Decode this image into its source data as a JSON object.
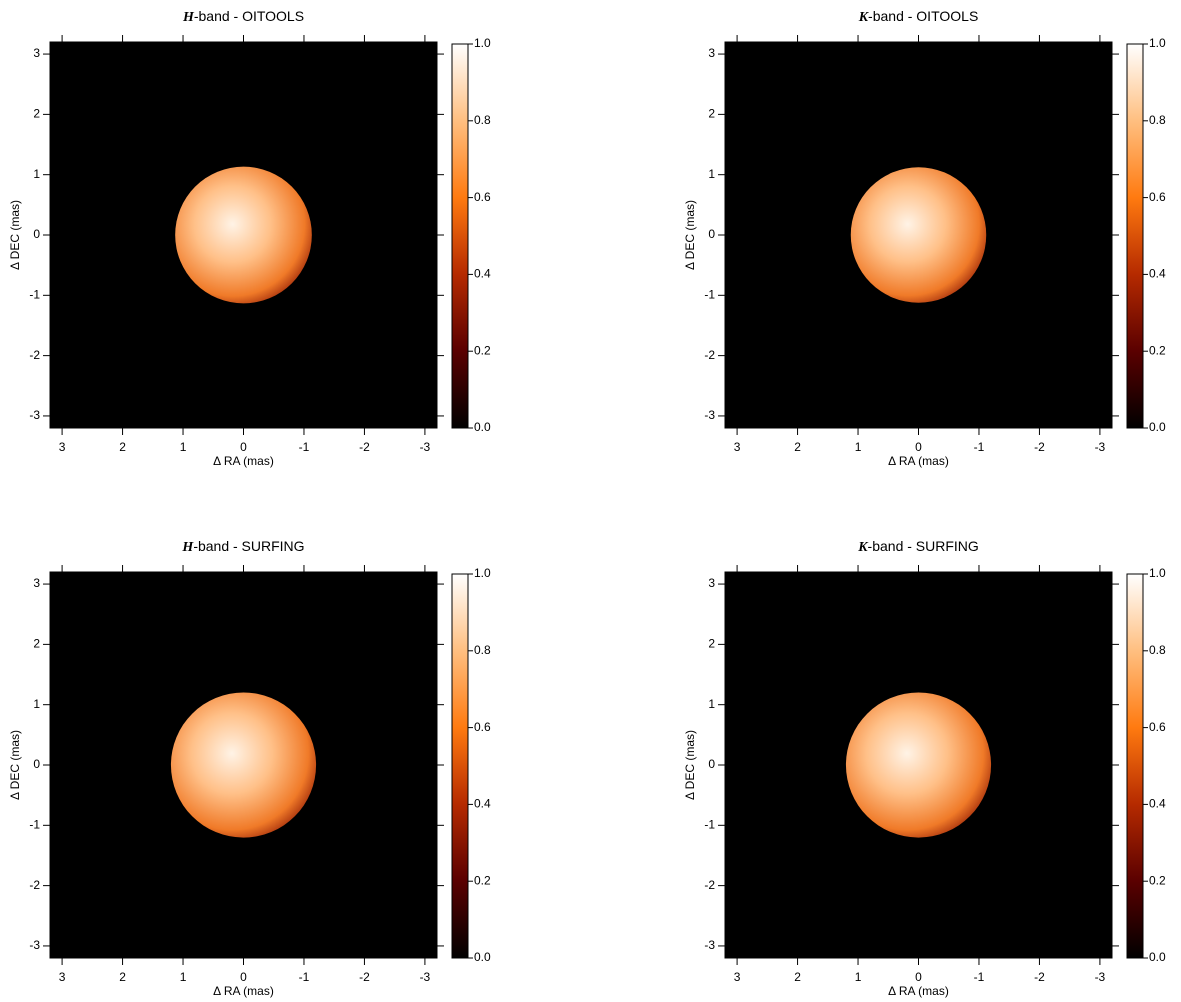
{
  "chart_data": [
    {
      "type": "image",
      "title": "H-band - OITOOLS",
      "xlabel": "Δ RA (mas)",
      "ylabel": "Δ DEC (mas)",
      "xlim": [
        3.2,
        -3.2
      ],
      "ylim": [
        -3.2,
        3.2
      ],
      "xticks": [
        3,
        2,
        1,
        0,
        -1,
        -2,
        -3
      ],
      "yticks": [
        -3,
        -2,
        -1,
        0,
        1,
        2,
        3
      ],
      "disk": {
        "center": [
          0,
          0
        ],
        "radius": 1.13
      },
      "colorbar": {
        "lim": [
          0,
          1
        ],
        "ticks": [
          {
            "value": 0,
            "label": "0.0"
          },
          0.2,
          0.4,
          0.6,
          0.8,
          {
            "value": 1,
            "label": "1.0"
          }
        ],
        "colors": [
          "#000000",
          "#5a0000",
          "#b52a00",
          "#ff7a10",
          "#ffbf80",
          "#ffffff"
        ]
      }
    },
    {
      "type": "image",
      "title": "K-band - OITOOLS",
      "xlabel": "Δ RA (mas)",
      "ylabel": "Δ DEC (mas)",
      "xlim": [
        3.2,
        -3.2
      ],
      "ylim": [
        -3.2,
        3.2
      ],
      "xticks": [
        3,
        2,
        1,
        0,
        -1,
        -2,
        -3
      ],
      "yticks": [
        -3,
        -2,
        -1,
        0,
        1,
        2,
        3
      ],
      "disk": {
        "center": [
          0,
          0
        ],
        "radius": 1.12
      },
      "colorbar": {
        "lim": [
          0,
          1
        ],
        "ticks": [
          {
            "value": 0,
            "label": "0.0"
          },
          0.2,
          0.4,
          0.6,
          0.8,
          {
            "value": 1,
            "label": "1.0"
          }
        ],
        "colors": [
          "#000000",
          "#5a0000",
          "#b52a00",
          "#ff7a10",
          "#ffbf80",
          "#ffffff"
        ]
      }
    },
    {
      "type": "image",
      "title": "H-band - SURFING",
      "xlabel": "Δ RA (mas)",
      "ylabel": "Δ DEC (mas)",
      "xlim": [
        3.2,
        -3.2
      ],
      "ylim": [
        -3.2,
        3.2
      ],
      "xticks": [
        3,
        2,
        1,
        0,
        -1,
        -2,
        -3
      ],
      "yticks": [
        -3,
        -2,
        -1,
        0,
        1,
        2,
        3
      ],
      "disk": {
        "center": [
          0,
          0
        ],
        "radius": 1.2
      },
      "colorbar": {
        "lim": [
          0,
          1
        ],
        "ticks": [
          {
            "value": 0,
            "label": "0.0"
          },
          0.2,
          0.4,
          0.6,
          0.8,
          {
            "value": 1,
            "label": "1.0"
          }
        ],
        "colors": [
          "#000000",
          "#5a0000",
          "#b52a00",
          "#ff7a10",
          "#ffbf80",
          "#ffffff"
        ]
      }
    },
    {
      "type": "image",
      "title": "K-band - SURFING",
      "xlabel": "Δ RA (mas)",
      "ylabel": "Δ DEC (mas)",
      "xlim": [
        3.2,
        -3.2
      ],
      "ylim": [
        -3.2,
        3.2
      ],
      "xticks": [
        3,
        2,
        1,
        0,
        -1,
        -2,
        -3
      ],
      "yticks": [
        -3,
        -2,
        -1,
        0,
        1,
        2,
        3
      ],
      "disk": {
        "center": [
          0,
          0
        ],
        "radius": 1.2
      },
      "colorbar": {
        "lim": [
          0,
          1
        ],
        "ticks": [
          {
            "value": 0,
            "label": "0.0"
          },
          0.2,
          0.4,
          0.6,
          0.8,
          {
            "value": 1,
            "label": "1.0"
          }
        ],
        "colors": [
          "#000000",
          "#5a0000",
          "#b52a00",
          "#ff7a10",
          "#ffbf80",
          "#ffffff"
        ]
      }
    }
  ]
}
